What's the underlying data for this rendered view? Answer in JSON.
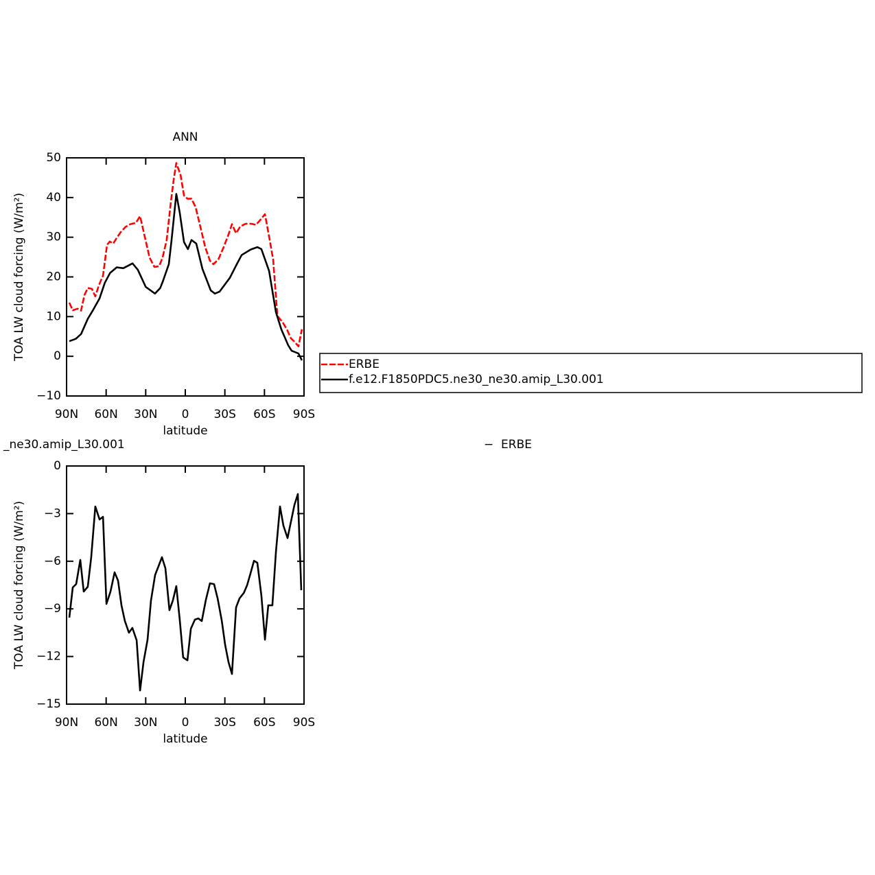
{
  "chart_data": [
    {
      "type": "line",
      "title": "ANN",
      "xlabel": "latitude",
      "ylabel": "TOA LW cloud forcing (W/m²)",
      "xlim": [
        90,
        -90
      ],
      "xticks": [
        {
          "value": 90,
          "label": "90N"
        },
        {
          "value": 60,
          "label": "60N"
        },
        {
          "value": 30,
          "label": "30N"
        },
        0,
        {
          "value": -30,
          "label": "30S"
        },
        {
          "value": -60,
          "label": "60S"
        },
        {
          "value": -90,
          "label": "90S"
        }
      ],
      "ylim": [
        -10,
        50
      ],
      "yticks": [
        {
          "value": -10,
          "label": "−10"
        },
        0,
        10,
        20,
        30,
        40,
        50
      ],
      "legend": "right",
      "series": [
        {
          "name": "ERBE",
          "color": "#ff0000",
          "dash": true,
          "x": [
            87.9,
            85.3,
            81.7,
            79,
            76.5,
            73.9,
            70.8,
            68.2,
            65.5,
            62.4,
            59.3,
            57.2,
            54.6,
            52,
            48.9,
            45.3,
            41.6,
            37.5,
            34.3,
            30.7,
            27.1,
            23.4,
            19.8,
            17.2,
            14.1,
            11,
            8.8,
            6.8,
            3.6,
            1,
            -1.6,
            -4.7,
            -7.8,
            -11.4,
            -15.1,
            -18.7,
            -21.3,
            -25,
            -29.1,
            -32.8,
            -35.4,
            -38.5,
            -41.6,
            -45.8,
            -50,
            -53.6,
            -57.2,
            -60.4,
            -64,
            -66.6,
            -69.8,
            -73.9,
            -77,
            -80.1,
            -82.7,
            -85.8,
            -88.4
          ],
          "values": [
            13.5,
            11.6,
            12,
            11.5,
            15.4,
            17.2,
            17,
            15.1,
            17.9,
            20.3,
            28.1,
            28.9,
            28.4,
            29.8,
            31.3,
            32.6,
            33.3,
            33.6,
            35.3,
            30.1,
            24.9,
            22.5,
            22.7,
            24.9,
            29.3,
            38.8,
            44.5,
            48.7,
            45.7,
            40.5,
            39.7,
            39.7,
            37.6,
            32.7,
            27.5,
            24.1,
            23.2,
            24.4,
            27.5,
            30.7,
            33.3,
            31,
            32.7,
            33.4,
            33.4,
            33.1,
            34.5,
            35.8,
            29.3,
            24.4,
            10.2,
            8.5,
            6.8,
            4.5,
            3.7,
            2.5,
            6.8
          ]
        },
        {
          "name": "f.e12.F1850PDC5.ne30_ne30.amip_L30.001",
          "color": "#000000",
          "dash": false,
          "x": [
            87.9,
            83,
            79,
            74,
            70,
            65,
            61,
            57,
            52,
            47,
            40,
            36,
            30,
            23,
            19,
            17,
            12.5,
            10.4,
            6.8,
            4.2,
            1,
            -2,
            -4.7,
            -8.3,
            -13,
            -19.3,
            -22.4,
            -26,
            -33.8,
            -39,
            -42.7,
            -49.5,
            -54.6,
            -57.7,
            -63.5,
            -68.7,
            -72.8,
            -78,
            -80.6,
            -85.8,
            -88.4
          ],
          "values": [
            3.8,
            4.4,
            5.6,
            9.4,
            11.6,
            14.6,
            18.5,
            21,
            22.4,
            22.2,
            23.4,
            21.8,
            17.5,
            15.8,
            17.2,
            18.9,
            23.2,
            29.3,
            40.9,
            36.2,
            28.8,
            27,
            29.3,
            28.4,
            22,
            16.6,
            15.8,
            16.3,
            19.8,
            23.2,
            25.5,
            26.9,
            27.5,
            27,
            21.5,
            11.1,
            6.8,
            2.8,
            1.4,
            0.7,
            -1
          ]
        }
      ]
    },
    {
      "type": "line",
      "title": "_ne30.amip_L30.001",
      "title_right": "−  ERBE",
      "xlabel": "latitude",
      "ylabel": "TOA LW cloud forcing (W/m²)",
      "xlim": [
        90,
        -90
      ],
      "xticks": [
        {
          "value": 90,
          "label": "90N"
        },
        {
          "value": 60,
          "label": "60N"
        },
        {
          "value": 30,
          "label": "30N"
        },
        0,
        {
          "value": -30,
          "label": "30S"
        },
        {
          "value": -60,
          "label": "60S"
        },
        {
          "value": -90,
          "label": "90S"
        }
      ],
      "ylim": [
        -15,
        0
      ],
      "yticks": [
        {
          "value": -15,
          "label": "−15"
        },
        {
          "value": -12,
          "label": "−12"
        },
        {
          "value": -9,
          "label": "−9"
        },
        {
          "value": -6,
          "label": "−6"
        },
        {
          "value": -3,
          "label": "−3"
        },
        0
      ],
      "series": [
        {
          "color": "#000000",
          "dash": false,
          "x": [
            87.9,
            85.3,
            82.7,
            79.6,
            77,
            73.9,
            71.3,
            68.2,
            65,
            62.4,
            59.8,
            56.7,
            53.6,
            51,
            48.4,
            45.8,
            42.7,
            40.1,
            36.9,
            34.3,
            31.7,
            28.6,
            26,
            22.9,
            20.3,
            17.7,
            15.1,
            12,
            9.4,
            6.8,
            4.2,
            1.6,
            -1.6,
            -4.2,
            -7.3,
            -9.9,
            -12.5,
            -15.6,
            -18.7,
            -21.8,
            -24.5,
            -27.6,
            -30.2,
            -32.8,
            -35.4,
            -38.5,
            -41.1,
            -44.3,
            -46.8,
            -49.5,
            -52.1,
            -54.6,
            -57.7,
            -60.4,
            -62.9,
            -66,
            -68.7,
            -71.8,
            -74.4,
            -77.5,
            -80.1,
            -82.7,
            -85.3,
            -87.9
          ],
          "values": [
            -9.55,
            -7.65,
            -7.44,
            -5.92,
            -7.91,
            -7.61,
            -5.75,
            -2.55,
            -3.37,
            -3.2,
            -8.69,
            -7.91,
            -6.7,
            -7.22,
            -8.78,
            -9.77,
            -10.5,
            -10.2,
            -10.98,
            -14.14,
            -12.36,
            -10.94,
            -8.47,
            -6.87,
            -6.31,
            -5.75,
            -6.44,
            -9.08,
            -8.47,
            -7.57,
            -9.68,
            -12.06,
            -12.24,
            -10.25,
            -9.68,
            -9.6,
            -9.77,
            -8.43,
            -7.39,
            -7.44,
            -8.34,
            -9.73,
            -11.28,
            -12.36,
            -13.1,
            -8.91,
            -8.34,
            -8,
            -7.52,
            -6.74,
            -5.97,
            -6.1,
            -8.17,
            -10.94,
            -8.78,
            -8.78,
            -5.4,
            -2.55,
            -3.76,
            -4.54,
            -3.5,
            -2.46,
            -1.77,
            -7.83
          ]
        }
      ]
    }
  ]
}
